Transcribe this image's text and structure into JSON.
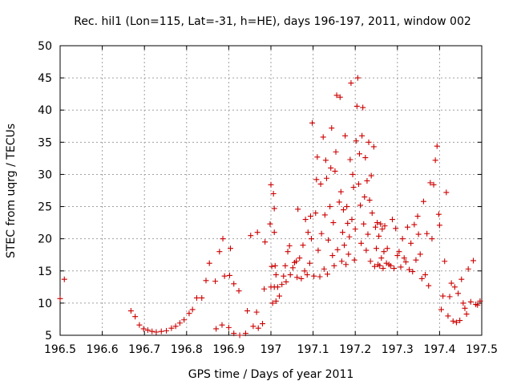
{
  "chart_data": {
    "type": "scatter",
    "title": "Rec. hil1 (Lon=115, Lat=-31, h=HE), days 196-197, 2011, window 002",
    "xlabel": "GPS time / Days of year 2011",
    "ylabel": "STEC from uqrg / TECUs",
    "xlim": [
      196.5,
      197.5
    ],
    "ylim": [
      5,
      50
    ],
    "x_ticks": [
      "196.5",
      "196.6",
      "196.7",
      "196.8",
      "196.9",
      "197",
      "197.1",
      "197.2",
      "197.3",
      "197.4",
      "197.5"
    ],
    "y_ticks": [
      "5",
      "10",
      "15",
      "20",
      "25",
      "30",
      "35",
      "40",
      "45",
      "50"
    ],
    "grid": true,
    "marker": "+",
    "marker_color": "#cc0000",
    "series": [
      {
        "points": [
          [
            196.5,
            10.7
          ],
          [
            196.51,
            13.7
          ],
          [
            196.668,
            8.8
          ],
          [
            196.678,
            7.9
          ],
          [
            196.688,
            6.6
          ],
          [
            196.698,
            6.0
          ],
          [
            196.708,
            5.8
          ],
          [
            196.718,
            5.6
          ],
          [
            196.728,
            5.5
          ],
          [
            196.74,
            5.6
          ],
          [
            196.752,
            5.7
          ],
          [
            196.764,
            6.1
          ],
          [
            196.774,
            6.4
          ],
          [
            196.784,
            6.9
          ],
          [
            196.794,
            7.4
          ],
          [
            196.806,
            8.4
          ],
          [
            196.814,
            9.0
          ],
          [
            196.824,
            10.8
          ],
          [
            196.836,
            10.8
          ],
          [
            196.846,
            13.5
          ],
          [
            196.854,
            16.2
          ],
          [
            196.868,
            13.4
          ],
          [
            196.878,
            18.0
          ],
          [
            196.886,
            20.0
          ],
          [
            196.89,
            14.2
          ],
          [
            196.902,
            14.3
          ],
          [
            196.904,
            18.5
          ],
          [
            196.912,
            13.0
          ],
          [
            196.924,
            11.9
          ],
          [
            196.87,
            6.0
          ],
          [
            196.884,
            6.6
          ],
          [
            196.9,
            6.2
          ],
          [
            196.912,
            5.3
          ],
          [
            196.926,
            5.0
          ],
          [
            196.94,
            5.3
          ],
          [
            196.944,
            8.8
          ],
          [
            196.952,
            20.5
          ],
          [
            196.958,
            6.4
          ],
          [
            196.966,
            8.6
          ],
          [
            196.97,
            6.1
          ],
          [
            196.968,
            21.0
          ],
          [
            196.98,
            6.8
          ],
          [
            196.984,
            12.2
          ],
          [
            196.986,
            19.5
          ],
          [
            197.0,
            28.4
          ],
          [
            197.006,
            27.0
          ],
          [
            197.008,
            24.7
          ],
          [
            196.998,
            22.3
          ],
          [
            197.008,
            21.0
          ],
          [
            197.01,
            15.8
          ],
          [
            197.002,
            15.7
          ],
          [
            197.012,
            14.4
          ],
          [
            197.0,
            12.5
          ],
          [
            197.008,
            12.5
          ],
          [
            197.016,
            12.5
          ],
          [
            197.004,
            10.0
          ],
          [
            197.012,
            10.3
          ],
          [
            197.02,
            11.1
          ],
          [
            197.026,
            12.9
          ],
          [
            197.03,
            14.2
          ],
          [
            197.034,
            15.8
          ],
          [
            197.036,
            13.3
          ],
          [
            197.04,
            18.0
          ],
          [
            197.044,
            18.9
          ],
          [
            197.046,
            14.4
          ],
          [
            197.052,
            15.5
          ],
          [
            197.056,
            16.3
          ],
          [
            197.06,
            16.5
          ],
          [
            197.062,
            14.0
          ],
          [
            197.064,
            24.6
          ],
          [
            197.068,
            17.0
          ],
          [
            197.072,
            13.8
          ],
          [
            197.076,
            19.0
          ],
          [
            197.08,
            15.0
          ],
          [
            197.082,
            23.0
          ],
          [
            197.086,
            14.4
          ],
          [
            197.088,
            21.0
          ],
          [
            197.092,
            16.2
          ],
          [
            197.094,
            23.5
          ],
          [
            197.096,
            20.0
          ],
          [
            197.098,
            38.0
          ],
          [
            197.102,
            14.2
          ],
          [
            197.106,
            24.0
          ],
          [
            197.108,
            29.2
          ],
          [
            197.11,
            32.7
          ],
          [
            197.112,
            18.2
          ],
          [
            197.116,
            14.1
          ],
          [
            197.118,
            28.5
          ],
          [
            197.12,
            20.8
          ],
          [
            197.124,
            35.8
          ],
          [
            197.126,
            15.3
          ],
          [
            197.128,
            23.7
          ],
          [
            197.13,
            32.2
          ],
          [
            197.132,
            29.4
          ],
          [
            197.134,
            14.5
          ],
          [
            197.136,
            19.8
          ],
          [
            197.14,
            25.0
          ],
          [
            197.142,
            31.0
          ],
          [
            197.144,
            37.2
          ],
          [
            197.146,
            17.4
          ],
          [
            197.148,
            22.5
          ],
          [
            197.15,
            15.8
          ],
          [
            197.152,
            30.5
          ],
          [
            197.154,
            33.5
          ],
          [
            197.156,
            42.3
          ],
          [
            197.158,
            18.3
          ],
          [
            197.162,
            25.7
          ],
          [
            197.164,
            42.0
          ],
          [
            197.166,
            27.3
          ],
          [
            197.168,
            16.5
          ],
          [
            197.17,
            21.0
          ],
          [
            197.172,
            24.5
          ],
          [
            197.174,
            19.0
          ],
          [
            197.176,
            36.0
          ],
          [
            197.178,
            16.0
          ],
          [
            197.18,
            25.0
          ],
          [
            197.182,
            22.4
          ],
          [
            197.184,
            17.6
          ],
          [
            197.186,
            20.3
          ],
          [
            197.188,
            32.3
          ],
          [
            197.19,
            44.2
          ],
          [
            197.192,
            23.0
          ],
          [
            197.194,
            30.0
          ],
          [
            197.196,
            28.0
          ],
          [
            197.198,
            16.7
          ],
          [
            197.2,
            21.5
          ],
          [
            197.202,
            35.2
          ],
          [
            197.204,
            40.6
          ],
          [
            197.206,
            45.0
          ],
          [
            197.208,
            28.5
          ],
          [
            197.21,
            33.2
          ],
          [
            197.212,
            25.2
          ],
          [
            197.214,
            19.3
          ],
          [
            197.216,
            36.0
          ],
          [
            197.218,
            40.4
          ],
          [
            197.22,
            22.3
          ],
          [
            197.222,
            26.5
          ],
          [
            197.224,
            32.6
          ],
          [
            197.226,
            18.2
          ],
          [
            197.228,
            29.0
          ],
          [
            197.23,
            20.7
          ],
          [
            197.232,
            35.0
          ],
          [
            197.234,
            26.0
          ],
          [
            197.236,
            16.5
          ],
          [
            197.238,
            29.8
          ],
          [
            197.24,
            24.0
          ],
          [
            197.244,
            34.3
          ],
          [
            197.246,
            15.7
          ],
          [
            197.248,
            21.8
          ],
          [
            197.25,
            18.5
          ],
          [
            197.252,
            22.5
          ],
          [
            197.254,
            16.0
          ],
          [
            197.256,
            20.4
          ],
          [
            197.258,
            15.8
          ],
          [
            197.26,
            22.3
          ],
          [
            197.262,
            17.0
          ],
          [
            197.264,
            21.5
          ],
          [
            197.266,
            15.4
          ],
          [
            197.268,
            18.0
          ],
          [
            197.27,
            22.0
          ],
          [
            197.274,
            16.2
          ],
          [
            197.276,
            18.5
          ],
          [
            197.28,
            16.0
          ],
          [
            197.284,
            15.8
          ],
          [
            197.288,
            23.0
          ],
          [
            197.292,
            15.4
          ],
          [
            197.296,
            21.6
          ],
          [
            197.3,
            17.4
          ],
          [
            197.304,
            18.0
          ],
          [
            197.308,
            15.6
          ],
          [
            197.312,
            20.0
          ],
          [
            197.316,
            17.0
          ],
          [
            197.32,
            16.4
          ],
          [
            197.324,
            21.8
          ],
          [
            197.328,
            15.2
          ],
          [
            197.332,
            19.3
          ],
          [
            197.336,
            14.9
          ],
          [
            197.34,
            22.2
          ],
          [
            197.344,
            16.7
          ],
          [
            197.348,
            23.5
          ],
          [
            197.35,
            20.7
          ],
          [
            197.354,
            17.6
          ],
          [
            197.358,
            13.8
          ],
          [
            197.362,
            25.8
          ],
          [
            197.366,
            14.4
          ],
          [
            197.37,
            20.8
          ],
          [
            197.374,
            12.7
          ],
          [
            197.378,
            28.7
          ],
          [
            197.382,
            20.0
          ],
          [
            197.386,
            28.4
          ],
          [
            197.39,
            32.2
          ],
          [
            197.394,
            34.4
          ],
          [
            197.398,
            23.8
          ],
          [
            197.4,
            22.1
          ],
          [
            197.404,
            9.0
          ],
          [
            197.408,
            11.1
          ],
          [
            197.412,
            16.5
          ],
          [
            197.416,
            27.2
          ],
          [
            197.42,
            8.0
          ],
          [
            197.424,
            11.0
          ],
          [
            197.428,
            13.1
          ],
          [
            197.432,
            7.2
          ],
          [
            197.436,
            12.5
          ],
          [
            197.44,
            7.0
          ],
          [
            197.444,
            11.5
          ],
          [
            197.448,
            7.3
          ],
          [
            197.452,
            13.7
          ],
          [
            197.456,
            10.0
          ],
          [
            197.46,
            9.2
          ],
          [
            197.464,
            8.3
          ],
          [
            197.468,
            15.3
          ],
          [
            197.474,
            10.2
          ],
          [
            197.48,
            16.6
          ],
          [
            197.486,
            9.8
          ],
          [
            197.49,
            9.7
          ],
          [
            197.496,
            10.3
          ]
        ]
      }
    ]
  }
}
